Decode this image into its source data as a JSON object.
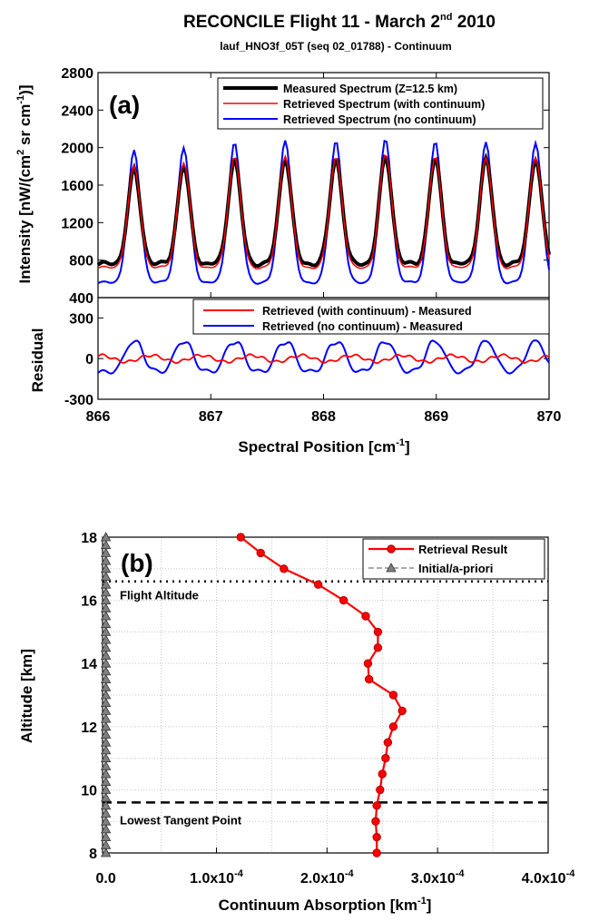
{
  "title": "RECONCILE Flight 11 - March 2",
  "title_sup": "nd",
  "title_year": " 2010",
  "subtitle": "lauf_HNO3f_05T (seq 02_01788)  - Continuum",
  "chart_data": [
    {
      "type": "line",
      "panel_label": "(a)",
      "ylabel": "Intensity [nW/(cm² sr cm⁻¹)]",
      "ylabel_parts": [
        "Intensity [nW/(cm",
        "2",
        " sr cm",
        "-1",
        ")]"
      ],
      "xlim": [
        866,
        870
      ],
      "ylim": [
        400,
        2800
      ],
      "yticks": [
        "400",
        "800",
        "1200",
        "1600",
        "2000",
        "2400",
        "2800"
      ],
      "legend_position": "top-right",
      "peaks": [
        866.32,
        866.76,
        867.21,
        867.66,
        868.11,
        868.55,
        868.99,
        869.44,
        869.88
      ],
      "series": [
        {
          "name": "Measured Spectrum (Z=12.5 km)",
          "color": "#000000",
          "peak_values": [
            1760,
            1800,
            1870,
            1890,
            1880,
            1900,
            1880,
            1870,
            1880
          ],
          "baseline": 760
        },
        {
          "name": "Retrieved Spectrum (with continuum)",
          "color": "#ff0000",
          "peak_values": [
            1790,
            1840,
            1900,
            1920,
            1900,
            1930,
            1900,
            1880,
            1900
          ],
          "baseline": 720
        },
        {
          "name": "Retrieved Spectrum (no continuum)",
          "color": "#0000ff",
          "peak_values": [
            1960,
            2000,
            2050,
            2090,
            2070,
            2090,
            2060,
            2050,
            2060
          ],
          "baseline": 560
        }
      ]
    },
    {
      "type": "line",
      "ylabel": "Residual",
      "xlabel": "Spectral Position [cm⁻¹]",
      "xlabel_parts": [
        "Spectral Position [cm",
        "-1",
        "]"
      ],
      "xlim": [
        866,
        870
      ],
      "ylim": [
        -300,
        450
      ],
      "xticks": [
        "866",
        "867",
        "868",
        "869",
        "870"
      ],
      "yticks": [
        "-300",
        "0",
        "300"
      ],
      "legend_position": "top-right",
      "series": [
        {
          "name": "Retrieved (with continuum) - Measured",
          "color": "#ff0000",
          "amplitude": 30
        },
        {
          "name": "Retrieved (no continuum) - Measured",
          "color": "#0000ff",
          "amplitude_peak": 190,
          "amplitude_trough": -170
        }
      ]
    },
    {
      "type": "line",
      "panel_label": "(b)",
      "xlabel": "Continuum Absorption [km⁻¹]",
      "xlabel_parts": [
        "Continuum Absorption [km",
        "-1",
        "]"
      ],
      "ylabel": "Altitude [km]",
      "xlim": [
        -3e-06,
        0.0004
      ],
      "ylim": [
        8,
        18
      ],
      "xticks": [
        "0.0",
        "1.0x10",
        "2.0x10",
        "3.0x10",
        "4.0x10"
      ],
      "xtick_exp": "-4",
      "yticks": [
        "8",
        "10",
        "12",
        "14",
        "16",
        "18"
      ],
      "grid": true,
      "legend_position": "top-right",
      "annotations": [
        {
          "text": "Flight Altitude",
          "y": 16.6
        },
        {
          "text": "Lowest Tangent Point",
          "y": 9.6
        }
      ],
      "series": [
        {
          "name": "Retrieval Result",
          "color": "#ff0000",
          "x": [
            0.000122,
            0.00014,
            0.000161,
            0.000192,
            0.000215,
            0.000235,
            0.000246,
            0.000246,
            0.000237,
            0.000238,
            0.00026,
            0.000268,
            0.00026,
            0.000255,
            0.000253,
            0.00025,
            0.000248,
            0.000245,
            0.000244,
            0.000245,
            0.000245
          ],
          "y": [
            18,
            17.5,
            17,
            16.5,
            16,
            15.5,
            15,
            14.5,
            14,
            13.5,
            13,
            12.5,
            12,
            11.5,
            11,
            10.5,
            10,
            9.5,
            9,
            8.5,
            8
          ]
        },
        {
          "name": "Initial/a-priori",
          "color": "#808080",
          "x": [
            0,
            0,
            0,
            0,
            0,
            0,
            0,
            0,
            0,
            0,
            0,
            0,
            0,
            0,
            0,
            0,
            0,
            0,
            0,
            0,
            0,
            0,
            0,
            0,
            0,
            0,
            0,
            0,
            0,
            0,
            0,
            0,
            0,
            0,
            0,
            0,
            0,
            0,
            0,
            0,
            0
          ],
          "y": [
            8,
            8.25,
            8.5,
            8.75,
            9,
            9.25,
            9.5,
            9.75,
            10,
            10.25,
            10.5,
            10.75,
            11,
            11.25,
            11.5,
            11.75,
            12,
            12.25,
            12.5,
            12.75,
            13,
            13.25,
            13.5,
            13.75,
            14,
            14.25,
            14.5,
            14.75,
            15,
            15.25,
            15.5,
            15.75,
            16,
            16.25,
            16.5,
            16.75,
            17,
            17.25,
            17.5,
            17.75,
            18
          ]
        }
      ]
    }
  ]
}
